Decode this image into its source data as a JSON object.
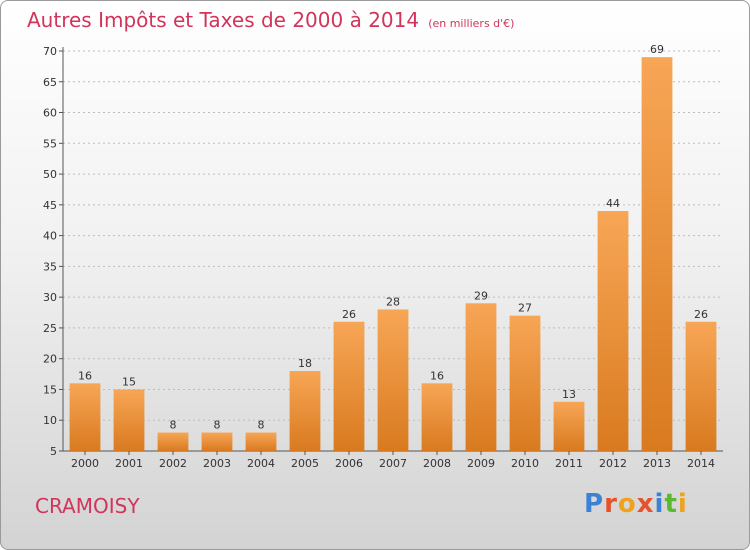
{
  "chart_data": {
    "type": "bar",
    "title": "Autres Impôts et Taxes de 2000 à 2014",
    "unit_label": "(en milliers d'€)",
    "categories": [
      "2000",
      "2001",
      "2002",
      "2003",
      "2004",
      "2005",
      "2006",
      "2007",
      "2008",
      "2009",
      "2010",
      "2011",
      "2012",
      "2013",
      "2014"
    ],
    "values": [
      16,
      15,
      8,
      8,
      8,
      18,
      26,
      28,
      16,
      29,
      27,
      13,
      44,
      69,
      26
    ],
    "ylim": [
      5,
      70
    ],
    "yticks": [
      5,
      10,
      15,
      20,
      25,
      30,
      35,
      40,
      45,
      50,
      55,
      60,
      65,
      70
    ],
    "grid": "horizontal dashed",
    "bar_color_top": "#f7a656",
    "bar_color_bottom": "#d97a1f"
  },
  "footer": {
    "town": "CRAMOISY",
    "logo_letters": [
      "P",
      "r",
      "o",
      "x",
      "i",
      "t",
      "i"
    ],
    "logo_colors": [
      "#3b82d6",
      "#e8522b",
      "#f0a21d",
      "#e8522b",
      "#3b82d6",
      "#5bb830",
      "#f0a21d"
    ]
  },
  "colors": {
    "title": "#d2345a",
    "axis": "#555555"
  }
}
